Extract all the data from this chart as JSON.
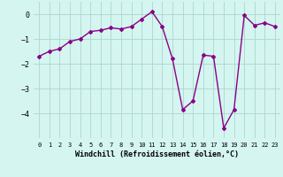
{
  "x": [
    0,
    1,
    2,
    3,
    4,
    5,
    6,
    7,
    8,
    9,
    10,
    11,
    12,
    13,
    14,
    15,
    16,
    17,
    18,
    19,
    20,
    21,
    22,
    23
  ],
  "y": [
    -1.7,
    -1.5,
    -1.4,
    -1.1,
    -1.0,
    -0.7,
    -0.65,
    -0.55,
    -0.6,
    -0.5,
    -0.2,
    0.1,
    -0.5,
    -1.8,
    -3.85,
    -3.5,
    -1.65,
    -1.7,
    -4.6,
    -3.85,
    -0.05,
    -0.45,
    -0.35,
    -0.5
  ],
  "line_color": "#880088",
  "marker": "D",
  "marker_size": 2.0,
  "bg_color": "#d5f5f0",
  "grid_color": "#aad8cc",
  "xlabel": "Windchill (Refroidissement éolien,°C)",
  "xlabel_fontsize": 6.0,
  "xlim": [
    -0.5,
    23.5
  ],
  "ylim": [
    -5.0,
    0.5
  ],
  "yticks": [
    0,
    -1,
    -2,
    -3,
    -4
  ],
  "xtick_fontsize": 5.0,
  "ytick_fontsize": 6.0,
  "linewidth": 1.0
}
